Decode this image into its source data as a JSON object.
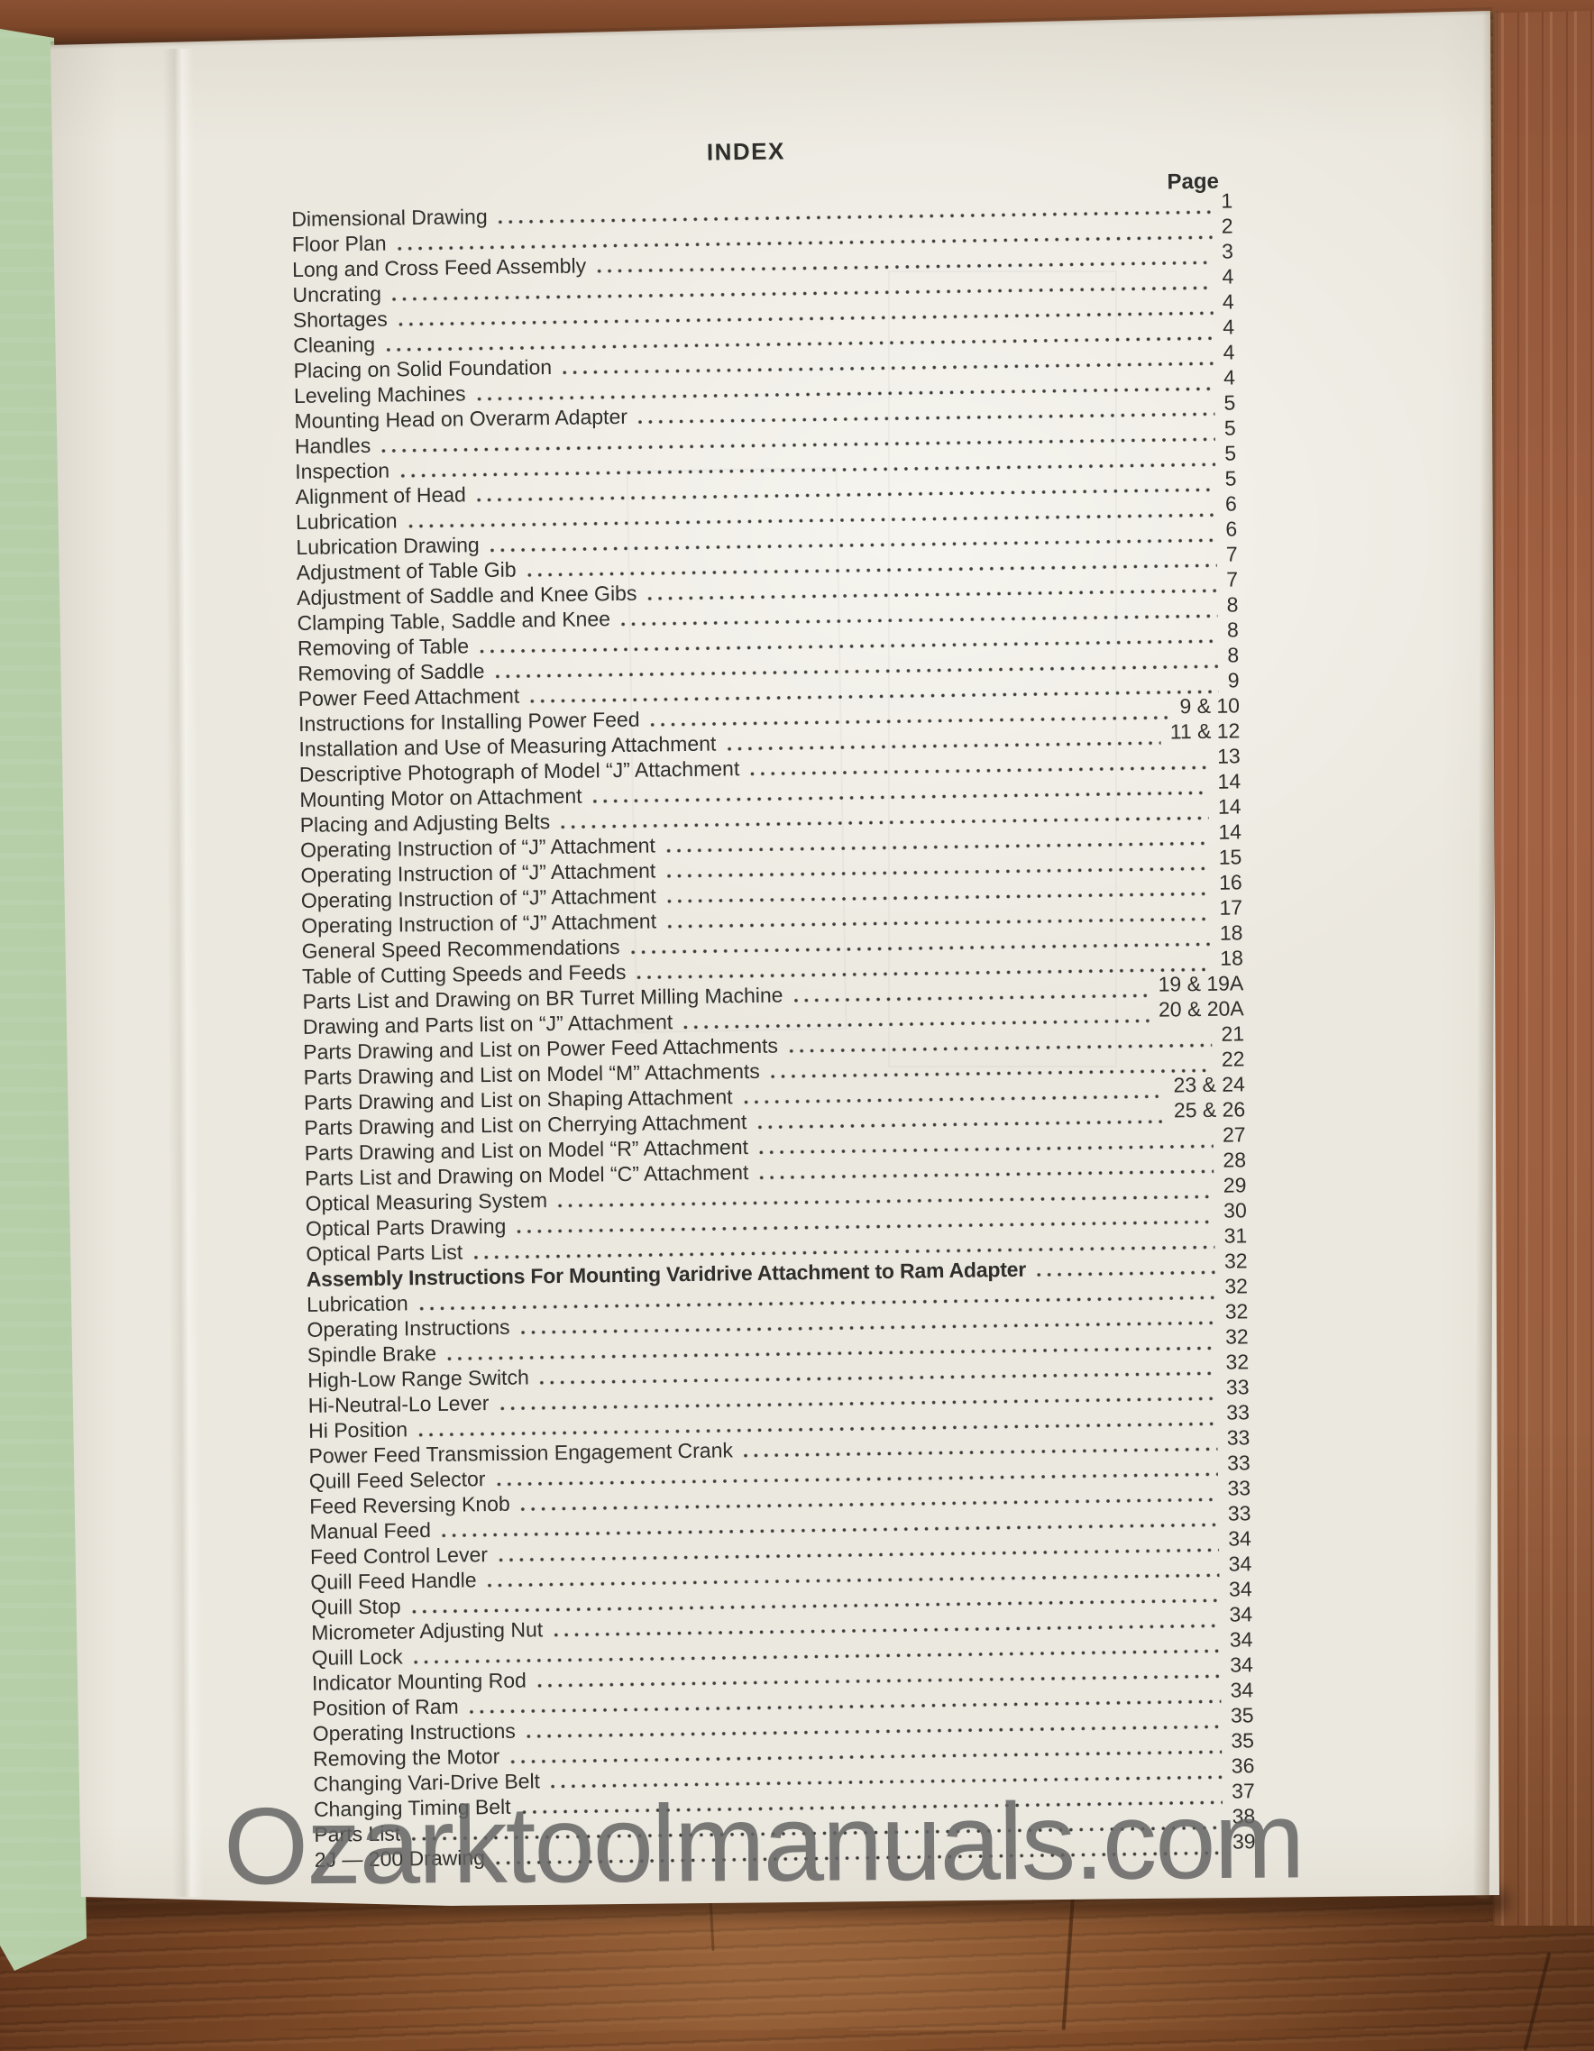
{
  "photo": {
    "watermark": "Ozarktoolmanuals.com"
  },
  "colors": {
    "paper": "#ebe8df",
    "cover_green": "#adc89f",
    "wood_dark": "#774626",
    "wood_light": "#a06243",
    "ink": "#2f2e2b",
    "watermark_gray": "#646464"
  },
  "document": {
    "title": "INDEX",
    "page_column_label": "Page",
    "entries": [
      {
        "label": "Dimensional Drawing",
        "page": "1"
      },
      {
        "label": "Floor Plan",
        "page": "2"
      },
      {
        "label": "Long and Cross Feed Assembly",
        "page": "3"
      },
      {
        "label": "Uncrating",
        "page": "4"
      },
      {
        "label": "Shortages",
        "page": "4"
      },
      {
        "label": "Cleaning",
        "page": "4"
      },
      {
        "label": "Placing on Solid Foundation",
        "page": "4"
      },
      {
        "label": "Leveling Machines",
        "page": "4"
      },
      {
        "label": "Mounting Head on Overarm Adapter",
        "page": "5"
      },
      {
        "label": "Handles",
        "page": "5"
      },
      {
        "label": "Inspection",
        "page": "5"
      },
      {
        "label": "Alignment of Head",
        "page": "5"
      },
      {
        "label": "Lubrication",
        "page": "6"
      },
      {
        "label": "Lubrication Drawing",
        "page": "6"
      },
      {
        "label": "Adjustment of Table Gib",
        "page": "7"
      },
      {
        "label": "Adjustment of Saddle and Knee Gibs",
        "page": "7"
      },
      {
        "label": "Clamping Table, Saddle and Knee",
        "page": "8"
      },
      {
        "label": "Removing of Table",
        "page": "8"
      },
      {
        "label": "Removing of Saddle",
        "page": "8"
      },
      {
        "label": "Power Feed Attachment",
        "page": "9"
      },
      {
        "label": "Instructions for Installing Power Feed",
        "page": "9 & 10"
      },
      {
        "label": "Installation and Use of Measuring Attachment",
        "page": "11 & 12"
      },
      {
        "label": "Descriptive Photograph of Model “J” Attachment",
        "page": "13"
      },
      {
        "label": "Mounting Motor on Attachment",
        "page": "14"
      },
      {
        "label": "Placing and Adjusting Belts",
        "page": "14"
      },
      {
        "label": "Operating Instruction of “J” Attachment",
        "page": "14"
      },
      {
        "label": "Operating Instruction of “J” Attachment",
        "page": "15"
      },
      {
        "label": "Operating Instruction of “J” Attachment",
        "page": "16"
      },
      {
        "label": "Operating Instruction of “J” Attachment",
        "page": "17"
      },
      {
        "label": "General Speed Recommendations",
        "page": "18"
      },
      {
        "label": "Table of Cutting Speeds and Feeds",
        "page": "18"
      },
      {
        "label": "Parts List and Drawing on BR Turret Milling Machine",
        "page": "19 & 19A"
      },
      {
        "label": "Drawing and Parts list on “J” Attachment",
        "page": "20 & 20A"
      },
      {
        "label": "Parts Drawing and List on Power Feed Attachments",
        "page": "21"
      },
      {
        "label": "Parts Drawing and List on Model “M” Attachments",
        "page": "22"
      },
      {
        "label": "Parts Drawing and List on Shaping Attachment",
        "page": "23 & 24"
      },
      {
        "label": "Parts Drawing and List on Cherrying Attachment",
        "page": "25 & 26"
      },
      {
        "label": "Parts Drawing and List on Model “R” Attachment",
        "page": "27"
      },
      {
        "label": "Parts List and Drawing on Model “C” Attachment",
        "page": "28"
      },
      {
        "label": "Optical Measuring System",
        "page": "29"
      },
      {
        "label": "Optical Parts Drawing",
        "page": "30"
      },
      {
        "label": "Optical Parts List",
        "page": "31"
      },
      {
        "label": "Assembly Instructions For Mounting Varidrive Attachment to Ram Adapter",
        "page": "32",
        "bold": true
      },
      {
        "label": "Lubrication",
        "page": "32"
      },
      {
        "label": "Operating Instructions",
        "page": "32"
      },
      {
        "label": "Spindle Brake",
        "page": "32"
      },
      {
        "label": "High-Low Range Switch",
        "page": "32"
      },
      {
        "label": "Hi-Neutral-Lo Lever",
        "page": "33"
      },
      {
        "label": "Hi Position",
        "page": "33"
      },
      {
        "label": "Power Feed Transmission Engagement Crank",
        "page": "33"
      },
      {
        "label": "Quill Feed Selector",
        "page": "33"
      },
      {
        "label": "Feed Reversing Knob",
        "page": "33"
      },
      {
        "label": "Manual Feed",
        "page": "33"
      },
      {
        "label": "Feed Control Lever",
        "page": "34"
      },
      {
        "label": "Quill Feed Handle",
        "page": "34"
      },
      {
        "label": "Quill Stop",
        "page": "34"
      },
      {
        "label": "Micrometer Adjusting Nut",
        "page": "34"
      },
      {
        "label": "Quill Lock",
        "page": "34"
      },
      {
        "label": "Indicator Mounting Rod",
        "page": "34"
      },
      {
        "label": "Position of Ram",
        "page": "34"
      },
      {
        "label": "Operating Instructions",
        "page": "35"
      },
      {
        "label": "Removing the Motor",
        "page": "35"
      },
      {
        "label": "Changing Vari-Drive Belt",
        "page": "36"
      },
      {
        "label": "Changing Timing Belt",
        "page": "37"
      },
      {
        "label": "Parts List",
        "page": "38"
      },
      {
        "label": "2J — 200 Drawing",
        "page": "39"
      }
    ]
  }
}
